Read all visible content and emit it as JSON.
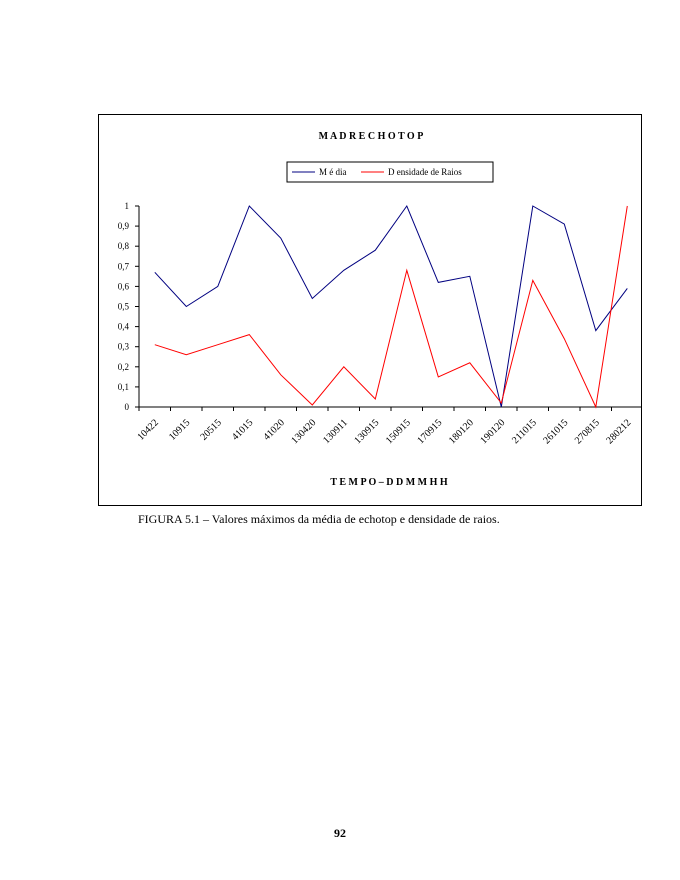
{
  "caption": "FIGURA 5.1 – Valores máximos da média de echotop e densidade de raios.",
  "page_number": "92",
  "colors": {
    "media": "#000080",
    "densidade": "#ff0000",
    "axis": "#000000"
  },
  "chart_data": {
    "type": "line",
    "title": "M A D R  E C H O T O P",
    "xlabel": "T E M P O  – D D M M H H",
    "ylabel": "",
    "ylim": [
      0,
      1
    ],
    "y_ticks": [
      "0",
      "0,1",
      "0,2",
      "0,3",
      "0,4",
      "0,5",
      "0,6",
      "0,7",
      "0,8",
      "0,9",
      "1"
    ],
    "x_tick_labels": [
      "10422",
      "10915",
      "20515",
      "41015",
      "41020",
      "130420",
      "130911",
      "130915",
      "150915",
      "170915",
      "180120",
      "190120",
      "211015",
      "261015",
      "270815",
      "280212"
    ],
    "grid": false,
    "legend_position": "top-center",
    "series": [
      {
        "name": "M é dia",
        "values": [
          0.67,
          0.5,
          0.6,
          1.0,
          0.84,
          0.54,
          0.68,
          0.78,
          1.0,
          0.62,
          0.65,
          0.0,
          1.0,
          0.91,
          0.38,
          0.59
        ]
      },
      {
        "name": "D ensidade de Raios",
        "values": [
          0.31,
          0.26,
          0.31,
          0.36,
          0.16,
          0.01,
          0.2,
          0.04,
          0.68,
          0.15,
          0.22,
          0.02,
          0.63,
          0.34,
          0.0,
          1.0
        ]
      }
    ]
  }
}
